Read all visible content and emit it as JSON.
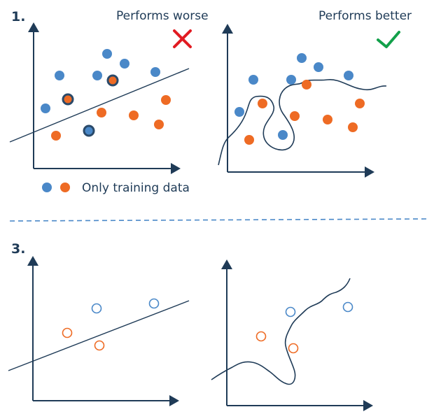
{
  "panel1": {
    "number": "1.",
    "left_caption": "Performs worse",
    "right_caption": "Performs better",
    "legend_text": "Only training data",
    "cross_icon": "red-cross-icon",
    "check_icon": "green-check-icon"
  },
  "panel3": {
    "number": "3."
  },
  "colors": {
    "blue": "#4a88c8",
    "orange": "#ee6b24",
    "axis": "#1f3b57",
    "divider": "#4a88c8",
    "cross": "#e11b22",
    "check": "#12a04a"
  }
}
